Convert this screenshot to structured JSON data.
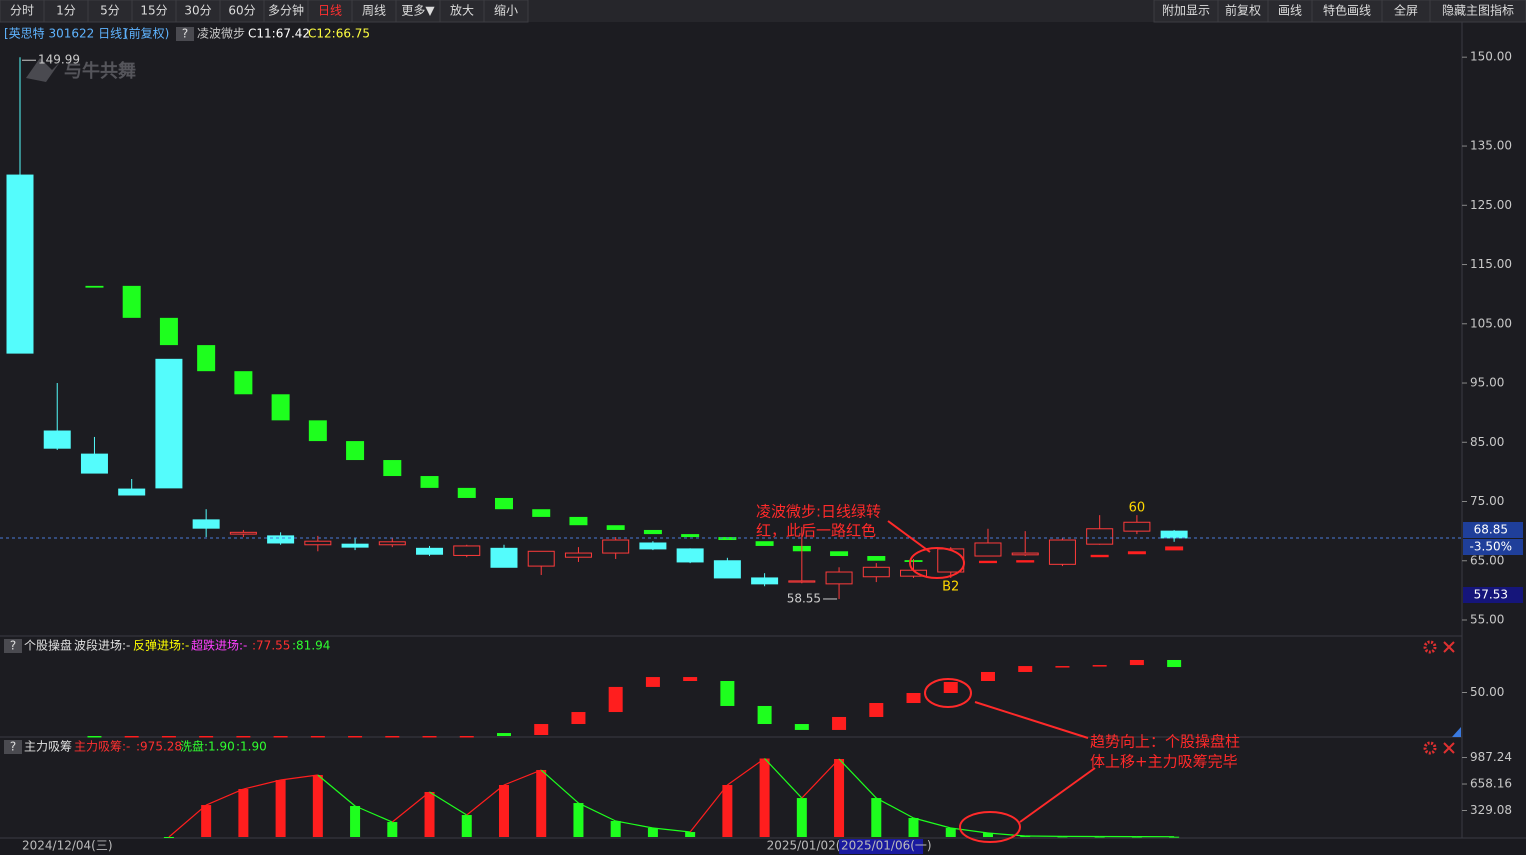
{
  "toolbar": {
    "left": [
      "分时",
      "1分",
      "5分",
      "15分",
      "30分",
      "60分",
      "多分钟",
      "日线",
      "周线",
      "更多▼",
      "放大",
      "缩小"
    ],
    "active": 7,
    "right": [
      "附加显示",
      "前复权",
      "画线",
      "特色画线",
      "全屏",
      "隐藏主图指标"
    ]
  },
  "help": "?",
  "watermark": "与牛共舞",
  "annotations": {
    "main": [
      "凌波微步:日线绿转",
      "红，此后一路红色"
    ],
    "trend": [
      "趋势向上：个股操盘柱",
      "体上移+主力吸筹完毕"
    ]
  },
  "chart_data": [
    {
      "type": "candlestick",
      "title": "[英思特 301622 日线]",
      "subtitle": "(前复权)",
      "indicator": "凌波微步",
      "indicator_values": [
        "C11:67.42",
        "C12:66.75"
      ],
      "categories": [
        "2024/12/04(三)",
        null,
        null,
        null,
        null,
        null,
        null,
        null,
        null,
        null,
        null,
        null,
        null,
        null,
        null,
        null,
        null,
        null,
        null,
        null,
        "2025/01/02(四)",
        null,
        "2025/01/06(一)",
        null,
        null,
        null,
        null,
        null,
        null,
        null,
        null,
        null
      ],
      "cursor_index": 22,
      "open": [
        130.1,
        86.9,
        83.0,
        77.1,
        99.0,
        71.9,
        69.5,
        69.2,
        67.7,
        67.8,
        67.7,
        67.1,
        65.9,
        67.1,
        64.1,
        65.6,
        66.3,
        68.0,
        67.0,
        65.0,
        62.1,
        61.4,
        61.1,
        62.3,
        62.4,
        63.1,
        65.8,
        66.0,
        64.4,
        67.8,
        70.0,
        70.0
      ],
      "high": [
        149.99,
        95.0,
        85.9,
        78.8,
        99.0,
        73.7,
        70.2,
        69.8,
        69.2,
        68.8,
        68.8,
        67.5,
        67.7,
        67.7,
        66.6,
        67.3,
        69.0,
        68.3,
        67.1,
        65.5,
        62.9,
        70.7,
        63.9,
        64.6,
        65.3,
        67.3,
        70.4,
        70.0,
        68.8,
        72.7,
        72.7,
        70.2
      ],
      "low": [
        100.05,
        83.7,
        79.8,
        76.1,
        77.3,
        69.0,
        69.0,
        67.7,
        66.6,
        66.8,
        67.3,
        65.8,
        65.6,
        63.9,
        62.6,
        64.8,
        65.3,
        66.8,
        64.6,
        62.1,
        60.7,
        61.2,
        58.55,
        61.4,
        62.1,
        62.1,
        65.8,
        65.8,
        64.1,
        67.7,
        69.5,
        68.2
      ],
      "close": [
        100.05,
        84.0,
        79.8,
        76.1,
        77.3,
        70.5,
        69.8,
        68.0,
        68.3,
        67.3,
        68.2,
        66.1,
        67.5,
        63.9,
        66.6,
        66.3,
        68.5,
        67.0,
        64.8,
        62.1,
        61.1,
        61.6,
        63.1,
        63.9,
        63.4,
        67.0,
        68.0,
        66.3,
        68.5,
        70.4,
        71.5,
        68.85
      ],
      "up_color": "#ff3b3b",
      "down_color": "#54fcfc",
      "overlay": {
        "upper": [
          null,
          null,
          111.4,
          111.4,
          106.0,
          101.4,
          97.0,
          93.1,
          88.7,
          85.2,
          82.0,
          79.3,
          77.3,
          75.6,
          73.7,
          72.4,
          71.0,
          70.2,
          69.5,
          69.0,
          68.3,
          67.5,
          66.6,
          65.8,
          65.1,
          64.9,
          65.0,
          65.1,
          65.6,
          66.0,
          66.6,
          67.42
        ],
        "lower": [
          null,
          null,
          111.1,
          106.0,
          101.4,
          97.0,
          93.1,
          88.7,
          85.2,
          82.0,
          79.3,
          77.3,
          75.6,
          73.7,
          72.4,
          71.0,
          70.2,
          69.5,
          69.0,
          68.5,
          67.5,
          66.6,
          65.8,
          65.0,
          64.8,
          64.6,
          64.6,
          64.7,
          65.0,
          65.6,
          66.1,
          66.75
        ],
        "colors": [
          null,
          null,
          "#1eff1e",
          "#1eff1e",
          "#1eff1e",
          "#1eff1e",
          "#1eff1e",
          "#1eff1e",
          "#1eff1e",
          "#1eff1e",
          "#1eff1e",
          "#1eff1e",
          "#1eff1e",
          "#1eff1e",
          "#1eff1e",
          "#1eff1e",
          "#1eff1e",
          "#1eff1e",
          "#1eff1e",
          "#1eff1e",
          "#1eff1e",
          "#1eff1e",
          "#1eff1e",
          "#1eff1e",
          "#1eff1e",
          "#ff2020",
          "#ff2020",
          "#ff2020",
          "#ff2020",
          "#ff2020",
          "#ff2020",
          "#ff2020"
        ]
      },
      "high_labels": [
        "149.99",
        null,
        null,
        null,
        null,
        null,
        null,
        null,
        null,
        null,
        null,
        null,
        null,
        null,
        null,
        null,
        null,
        null,
        null,
        null,
        null,
        null,
        null,
        null,
        null,
        null,
        null,
        null,
        null,
        null,
        null,
        null
      ],
      "low_labels": [
        null,
        null,
        null,
        null,
        null,
        null,
        null,
        null,
        null,
        null,
        null,
        null,
        null,
        null,
        null,
        null,
        null,
        null,
        null,
        null,
        null,
        null,
        "58.55",
        null,
        null,
        null,
        null,
        null,
        null,
        null,
        null,
        null
      ],
      "signals_above": [
        null,
        null,
        null,
        null,
        null,
        null,
        null,
        null,
        null,
        null,
        null,
        null,
        null,
        null,
        null,
        null,
        null,
        null,
        null,
        null,
        null,
        null,
        null,
        null,
        null,
        null,
        null,
        null,
        null,
        null,
        "60",
        null
      ],
      "signals_below": [
        null,
        null,
        null,
        null,
        null,
        null,
        null,
        null,
        null,
        null,
        null,
        null,
        null,
        null,
        null,
        null,
        null,
        null,
        null,
        null,
        null,
        null,
        null,
        null,
        null,
        "B2",
        null,
        null,
        null,
        null,
        null,
        null
      ],
      "ylim": [
        52.3,
        155.6
      ],
      "yticks": [
        {
          "value": 150,
          "label": "150.00"
        },
        {
          "value": 135,
          "label": "135.00"
        },
        {
          "value": 125,
          "label": "125.00"
        },
        {
          "value": 115,
          "label": "115.00"
        },
        {
          "value": 105,
          "label": "105.00"
        },
        {
          "value": 95,
          "label": "95.00"
        },
        {
          "value": 85,
          "label": "85.00"
        },
        {
          "value": 75,
          "label": "75.00"
        },
        {
          "value": 65,
          "label": "65.00"
        },
        {
          "value": 55,
          "label": "55.00"
        }
      ],
      "price_tag": "68.85",
      "change_tag": "-3.50%",
      "cursor_tag": "57.53"
    },
    {
      "type": "floating_bar",
      "title": "个股操盘",
      "legend": [
        "波段进场:-",
        "反弹进场:-",
        "超跌进场:-",
        ":77.55",
        ":81.94"
      ],
      "legend_colors": [
        "#e0e0e0",
        "#ffff00",
        "#ff40ff",
        "#ff3030",
        "#30ff30"
      ],
      "start": [
        null,
        null,
        14.8,
        14.8,
        14.8,
        14.8,
        14.8,
        14.8,
        14.8,
        14.8,
        14.8,
        14.8,
        14.8,
        17.2,
        24.5,
        34.2,
        54.5,
        62.5,
        62.5,
        59.3,
        39.1,
        24.5,
        30.2,
        41.5,
        49.6,
        58.5,
        66.6,
        71.4,
        71.4,
        72.2,
        76.3,
        76.3
      ],
      "end": [
        null,
        null,
        14.0,
        14.0,
        14.0,
        14.0,
        14.0,
        14.0,
        14.0,
        14.0,
        14.0,
        14.0,
        14.0,
        14.8,
        15.6,
        24.5,
        34.2,
        54.5,
        59.3,
        39.1,
        24.5,
        19.7,
        19.7,
        30.2,
        41.5,
        49.6,
        59.3,
        66.6,
        70.9,
        71.7,
        72.2,
        70.6
      ],
      "colors": [
        null,
        null,
        "#1eff1e",
        "#ff1e1e",
        "#ff1e1e",
        "#ff1e1e",
        "#ff1e1e",
        "#ff1e1e",
        "#ff1e1e",
        "#ff1e1e",
        "#ff1e1e",
        "#ff1e1e",
        "#ff1e1e",
        "#1eff1e",
        "#ff1e1e",
        "#ff1e1e",
        "#ff1e1e",
        "#ff1e1e",
        "#ff1e1e",
        "#1eff1e",
        "#1eff1e",
        "#1eff1e",
        "#ff1e1e",
        "#ff1e1e",
        "#ff1e1e",
        "#ff1e1e",
        "#ff1e1e",
        "#ff1e1e",
        "#ff1e1e",
        "#ff1e1e",
        "#ff1e1e",
        "#1eff1e"
      ],
      "ylim": [
        14,
        86
      ],
      "yticks": [
        {
          "value": 50,
          "label": "50.00"
        }
      ]
    },
    {
      "type": "bar",
      "title": "主力吸筹",
      "legend": [
        "主力吸筹:-",
        ":975.28",
        "洗盘:1.90",
        ":1.90"
      ],
      "legend_colors": [
        "#ff3030",
        "#ff3030",
        "#30ff30",
        "#30ff30"
      ],
      "values": [
        null,
        null,
        null,
        null,
        0,
        397,
        596,
        708,
        770,
        385,
        186,
        559,
        273,
        646,
        832,
        422,
        199,
        112,
        62,
        646,
        975,
        484,
        969,
        484,
        236,
        112,
        50,
        12,
        8,
        6,
        5,
        4
      ],
      "colors": [
        null,
        null,
        null,
        null,
        "#1eff1e",
        "#ff1e1e",
        "#ff1e1e",
        "#ff1e1e",
        "#ff1e1e",
        "#1eff1e",
        "#1eff1e",
        "#ff1e1e",
        "#1eff1e",
        "#ff1e1e",
        "#ff1e1e",
        "#1eff1e",
        "#1eff1e",
        "#1eff1e",
        "#1eff1e",
        "#ff1e1e",
        "#ff1e1e",
        "#1eff1e",
        "#ff1e1e",
        "#1eff1e",
        "#1eff1e",
        "#1eff1e",
        "#1eff1e",
        "#1eff1e",
        "#1eff1e",
        "#1eff1e",
        "#1eff1e",
        "#1eff1e"
      ],
      "ylim": [
        0,
        1205
      ],
      "yticks": [
        987.24,
        658.16,
        329.08
      ]
    }
  ]
}
